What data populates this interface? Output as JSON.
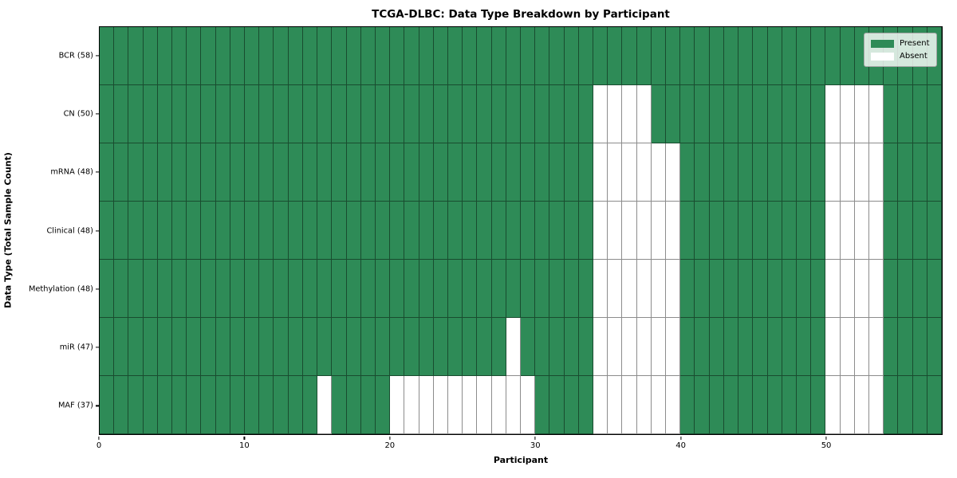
{
  "title": "TCGA-DLBC: Data Type Breakdown by Participant",
  "x_axis": {
    "label": "Participant",
    "tick_values": [
      0,
      10,
      20,
      30,
      40,
      50
    ],
    "tick_labels": [
      "0",
      "10",
      "20",
      "30",
      "40",
      "50"
    ],
    "range": [
      0,
      58
    ]
  },
  "y_axis": {
    "label": "Data Type (Total Sample Count)"
  },
  "legend": {
    "items": [
      {
        "label": "Present",
        "color": "#2e8b57"
      },
      {
        "label": "Absent",
        "color": "#ffffff"
      }
    ]
  },
  "chart_data": {
    "type": "heatmap",
    "title": "TCGA-DLBC: Data Type Breakdown by Participant",
    "xlabel": "Participant",
    "ylabel": "Data Type (Total Sample Count)",
    "xlim": [
      0,
      58
    ],
    "n_participants": 58,
    "x_ticks": [
      0,
      10,
      20,
      30,
      40,
      50
    ],
    "grid": true,
    "legend_position": "upper right",
    "legend_entries": [
      "Present",
      "Absent"
    ],
    "cell_encoding": "1 = Present (green), 0 = Absent (white); absent_participants lists 0-based participant columns that are white in that row",
    "colors": {
      "present": "#2e8b57",
      "absent": "#ffffff",
      "gridline": "rgba(0,0,0,0.45)"
    },
    "rows": [
      {
        "label": "BCR (58)",
        "data_type": "BCR",
        "total_samples": 58,
        "absent_participants": []
      },
      {
        "label": "CN (50)",
        "data_type": "CN",
        "total_samples": 50,
        "absent_participants": [
          34,
          35,
          36,
          37,
          50,
          51,
          52,
          53
        ]
      },
      {
        "label": "mRNA (48)",
        "data_type": "mRNA",
        "total_samples": 48,
        "absent_participants": [
          34,
          35,
          36,
          37,
          38,
          39,
          50,
          51,
          52,
          53
        ]
      },
      {
        "label": "Clinical (48)",
        "data_type": "Clinical",
        "total_samples": 48,
        "absent_participants": [
          34,
          35,
          36,
          37,
          38,
          39,
          50,
          51,
          52,
          53
        ]
      },
      {
        "label": "Methylation (48)",
        "data_type": "Methylation",
        "total_samples": 48,
        "absent_participants": [
          34,
          35,
          36,
          37,
          38,
          39,
          50,
          51,
          52,
          53
        ]
      },
      {
        "label": "miR (47)",
        "data_type": "miR",
        "total_samples": 47,
        "absent_participants": [
          28,
          34,
          35,
          36,
          37,
          38,
          39,
          50,
          51,
          52,
          53
        ]
      },
      {
        "label": "MAF (37)",
        "data_type": "MAF",
        "total_samples": 37,
        "absent_participants": [
          15,
          20,
          21,
          22,
          23,
          24,
          25,
          26,
          27,
          28,
          29,
          34,
          35,
          36,
          37,
          38,
          39,
          50,
          51,
          52,
          53
        ]
      }
    ]
  }
}
